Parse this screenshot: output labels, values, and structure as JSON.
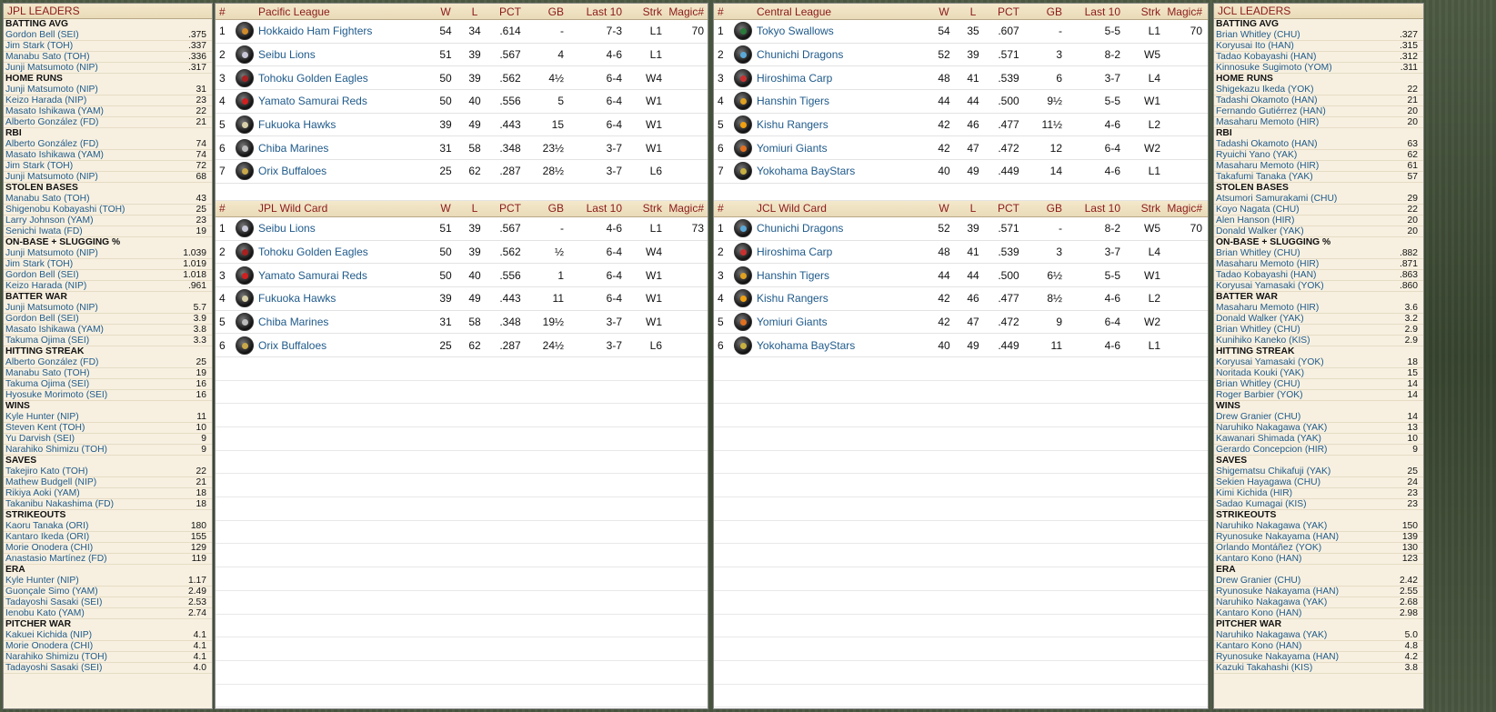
{
  "jpl_leaders": {
    "title": "JPL LEADERS",
    "categories": [
      {
        "name": "BATTING AVG",
        "rows": [
          [
            "Gordon Bell (SEI)",
            ".375"
          ],
          [
            "Jim Stark (TOH)",
            ".337"
          ],
          [
            "Manabu Sato (TOH)",
            ".336"
          ],
          [
            "Junji Matsumoto (NIP)",
            ".317"
          ]
        ]
      },
      {
        "name": "HOME RUNS",
        "rows": [
          [
            "Junji Matsumoto (NIP)",
            "31"
          ],
          [
            "Keizo Harada (NIP)",
            "23"
          ],
          [
            "Masato Ishikawa (YAM)",
            "22"
          ],
          [
            "Alberto González (FD)",
            "21"
          ]
        ]
      },
      {
        "name": "RBI",
        "rows": [
          [
            "Alberto González (FD)",
            "74"
          ],
          [
            "Masato Ishikawa (YAM)",
            "74"
          ],
          [
            "Jim Stark (TOH)",
            "72"
          ],
          [
            "Junji Matsumoto (NIP)",
            "68"
          ]
        ]
      },
      {
        "name": "STOLEN BASES",
        "rows": [
          [
            "Manabu Sato (TOH)",
            "43"
          ],
          [
            "Shigenobu Kobayashi (TOH)",
            "25"
          ],
          [
            "Larry Johnson (YAM)",
            "23"
          ],
          [
            "Senichi Iwata (FD)",
            "19"
          ]
        ]
      },
      {
        "name": "ON-BASE + SLUGGING %",
        "rows": [
          [
            "Junji Matsumoto (NIP)",
            "1.039"
          ],
          [
            "Jim Stark (TOH)",
            "1.019"
          ],
          [
            "Gordon Bell (SEI)",
            "1.018"
          ],
          [
            "Keizo Harada (NIP)",
            ".961"
          ]
        ]
      },
      {
        "name": "BATTER WAR",
        "rows": [
          [
            "Junji Matsumoto (NIP)",
            "5.7"
          ],
          [
            "Gordon Bell (SEI)",
            "3.9"
          ],
          [
            "Masato Ishikawa (YAM)",
            "3.8"
          ],
          [
            "Takuma Ojima (SEI)",
            "3.3"
          ]
        ]
      },
      {
        "name": "HITTING STREAK",
        "rows": [
          [
            "Alberto González (FD)",
            "25"
          ],
          [
            "Manabu Sato (TOH)",
            "19"
          ],
          [
            "Takuma Ojima (SEI)",
            "16"
          ],
          [
            "Hyosuke Morimoto (SEI)",
            "16"
          ]
        ]
      },
      {
        "name": "WINS",
        "rows": [
          [
            "Kyle Hunter (NIP)",
            "11"
          ],
          [
            "Steven Kent (TOH)",
            "10"
          ],
          [
            "Yu Darvish (SEI)",
            "9"
          ],
          [
            "Narahiko Shimizu (TOH)",
            "9"
          ]
        ]
      },
      {
        "name": "SAVES",
        "rows": [
          [
            "Takejiro Kato (TOH)",
            "22"
          ],
          [
            "Mathew Budgell (NIP)",
            "21"
          ],
          [
            "Rikiya Aoki (YAM)",
            "18"
          ],
          [
            "Takanibu Nakashima (FD)",
            "18"
          ]
        ]
      },
      {
        "name": "STRIKEOUTS",
        "rows": [
          [
            "Kaoru Tanaka (ORI)",
            "180"
          ],
          [
            "Kantaro Ikeda (ORI)",
            "155"
          ],
          [
            "Morie Onodera (CHI)",
            "129"
          ],
          [
            "Anastasio Martínez (FD)",
            "119"
          ]
        ]
      },
      {
        "name": "ERA",
        "rows": [
          [
            "Kyle Hunter (NIP)",
            "1.17"
          ],
          [
            "Guonçale Simo (YAM)",
            "2.49"
          ],
          [
            "Tadayoshi Sasaki (SEI)",
            "2.53"
          ],
          [
            "Ienobu Kato (YAM)",
            "2.74"
          ]
        ]
      },
      {
        "name": "PITCHER WAR",
        "rows": [
          [
            "Kakuei Kichida (NIP)",
            "4.1"
          ],
          [
            "Morie Onodera (CHI)",
            "4.1"
          ],
          [
            "Narahiko Shimizu (TOH)",
            "4.1"
          ],
          [
            "Tadayoshi Sasaki (SEI)",
            "4.0"
          ]
        ]
      }
    ]
  },
  "jcl_leaders": {
    "title": "JCL LEADERS",
    "categories": [
      {
        "name": "BATTING AVG",
        "rows": [
          [
            "Brian Whitley (CHU)",
            ".327"
          ],
          [
            "Koryusai Ito (HAN)",
            ".315"
          ],
          [
            "Tadao Kobayashi (HAN)",
            ".312"
          ],
          [
            "Kinnosuke Sugimoto (YOM)",
            ".311"
          ]
        ]
      },
      {
        "name": "HOME RUNS",
        "rows": [
          [
            "Shigekazu Ikeda (YOK)",
            "22"
          ],
          [
            "Tadashi Okamoto (HAN)",
            "21"
          ],
          [
            "Fernando Gutiérrez (HAN)",
            "20"
          ],
          [
            "Masaharu Memoto (HIR)",
            "20"
          ]
        ]
      },
      {
        "name": "RBI",
        "rows": [
          [
            "Tadashi Okamoto (HAN)",
            "63"
          ],
          [
            "Ryuichi Yano (YAK)",
            "62"
          ],
          [
            "Masaharu Memoto (HIR)",
            "61"
          ],
          [
            "Takafumi Tanaka (YAK)",
            "57"
          ]
        ]
      },
      {
        "name": "STOLEN BASES",
        "rows": [
          [
            "Atsumori Samurakami (CHU)",
            "29"
          ],
          [
            "Koyo Nagata (CHU)",
            "22"
          ],
          [
            "Alen Hanson (HIR)",
            "20"
          ],
          [
            "Donald Walker (YAK)",
            "20"
          ]
        ]
      },
      {
        "name": "ON-BASE + SLUGGING %",
        "rows": [
          [
            "Brian Whitley (CHU)",
            ".882"
          ],
          [
            "Masaharu Memoto (HIR)",
            ".871"
          ],
          [
            "Tadao Kobayashi (HAN)",
            ".863"
          ],
          [
            "Koryusai Yamasaki (YOK)",
            ".860"
          ]
        ]
      },
      {
        "name": "BATTER WAR",
        "rows": [
          [
            "Masaharu Memoto (HIR)",
            "3.6"
          ],
          [
            "Donald Walker (YAK)",
            "3.2"
          ],
          [
            "Brian Whitley (CHU)",
            "2.9"
          ],
          [
            "Kunihiko Kaneko (KIS)",
            "2.9"
          ]
        ]
      },
      {
        "name": "HITTING STREAK",
        "rows": [
          [
            "Koryusai Yamasaki (YOK)",
            "18"
          ],
          [
            "Noritada Kouki (YAK)",
            "15"
          ],
          [
            "Brian Whitley (CHU)",
            "14"
          ],
          [
            "Roger Barbier (YOK)",
            "14"
          ]
        ]
      },
      {
        "name": "WINS",
        "rows": [
          [
            "Drew Granier (CHU)",
            "14"
          ],
          [
            "Naruhiko Nakagawa (YAK)",
            "13"
          ],
          [
            "Kawanari Shimada (YAK)",
            "10"
          ],
          [
            "Gerardo Concepcion (HIR)",
            "9"
          ]
        ]
      },
      {
        "name": "SAVES",
        "rows": [
          [
            "Shigematsu Chikafuji (YAK)",
            "25"
          ],
          [
            "Sekien Hayagawa (CHU)",
            "24"
          ],
          [
            "Kimi Kichida (HIR)",
            "23"
          ],
          [
            "Sadao Kumagai (KIS)",
            "23"
          ]
        ]
      },
      {
        "name": "STRIKEOUTS",
        "rows": [
          [
            "Naruhiko Nakagawa (YAK)",
            "150"
          ],
          [
            "Ryunosuke Nakayama (HAN)",
            "139"
          ],
          [
            "Orlando Montáñez (YOK)",
            "130"
          ],
          [
            "Kantaro Kono (HAN)",
            "123"
          ]
        ]
      },
      {
        "name": "ERA",
        "rows": [
          [
            "Drew Granier (CHU)",
            "2.42"
          ],
          [
            "Ryunosuke Nakayama (HAN)",
            "2.55"
          ],
          [
            "Naruhiko Nakagawa (YAK)",
            "2.68"
          ],
          [
            "Kantaro Kono (HAN)",
            "2.98"
          ]
        ]
      },
      {
        "name": "PITCHER WAR",
        "rows": [
          [
            "Naruhiko Nakagawa (YAK)",
            "5.0"
          ],
          [
            "Kantaro Kono (HAN)",
            "4.8"
          ],
          [
            "Ryunosuke Nakayama (HAN)",
            "4.2"
          ],
          [
            "Kazuki Takahashi (KIS)",
            "3.8"
          ]
        ]
      }
    ]
  },
  "columns": {
    "num": "#",
    "w": "W",
    "l": "L",
    "pct": "PCT",
    "gb": "GB",
    "last10": "Last 10",
    "strk": "Strk",
    "magic": "Magic#"
  },
  "pacific": {
    "title": "Pacific League",
    "rows": [
      {
        "num": "1",
        "team": "Hokkaido Ham Fighters",
        "w": "54",
        "l": "34",
        "pct": ".614",
        "gb": "-",
        "last10": "7-3",
        "strk": "L1",
        "magic": "70",
        "color": "#d08a2a"
      },
      {
        "num": "2",
        "team": "Seibu Lions",
        "w": "51",
        "l": "39",
        "pct": ".567",
        "gb": "4",
        "last10": "4-6",
        "strk": "L1",
        "magic": "",
        "color": "#c8c8d8"
      },
      {
        "num": "3",
        "team": "Tohoku Golden Eagles",
        "w": "50",
        "l": "39",
        "pct": ".562",
        "gb": "4½",
        "last10": "6-4",
        "strk": "W4",
        "magic": "",
        "color": "#a82020"
      },
      {
        "num": "4",
        "team": "Yamato Samurai Reds",
        "w": "50",
        "l": "40",
        "pct": ".556",
        "gb": "5",
        "last10": "6-4",
        "strk": "W1",
        "magic": "",
        "color": "#d02020"
      },
      {
        "num": "5",
        "team": "Fukuoka Hawks",
        "w": "39",
        "l": "49",
        "pct": ".443",
        "gb": "15",
        "last10": "6-4",
        "strk": "W1",
        "magic": "",
        "color": "#d8d0a8"
      },
      {
        "num": "6",
        "team": "Chiba Marines",
        "w": "31",
        "l": "58",
        "pct": ".348",
        "gb": "23½",
        "last10": "3-7",
        "strk": "W1",
        "magic": "",
        "color": "#bbbbbb"
      },
      {
        "num": "7",
        "team": "Orix Buffaloes",
        "w": "25",
        "l": "62",
        "pct": ".287",
        "gb": "28½",
        "last10": "3-7",
        "strk": "L6",
        "magic": "",
        "color": "#c8a848"
      }
    ],
    "wild_title": "JPL  Wild Card",
    "wild": [
      {
        "num": "1",
        "team": "Seibu Lions",
        "w": "51",
        "l": "39",
        "pct": ".567",
        "gb": "-",
        "last10": "4-6",
        "strk": "L1",
        "magic": "73",
        "color": "#c8c8d8"
      },
      {
        "num": "2",
        "team": "Tohoku Golden Eagles",
        "w": "50",
        "l": "39",
        "pct": ".562",
        "gb": "½",
        "last10": "6-4",
        "strk": "W4",
        "magic": "",
        "color": "#a82020"
      },
      {
        "num": "3",
        "team": "Yamato Samurai Reds",
        "w": "50",
        "l": "40",
        "pct": ".556",
        "gb": "1",
        "last10": "6-4",
        "strk": "W1",
        "magic": "",
        "color": "#d02020"
      },
      {
        "num": "4",
        "team": "Fukuoka Hawks",
        "w": "39",
        "l": "49",
        "pct": ".443",
        "gb": "11",
        "last10": "6-4",
        "strk": "W1",
        "magic": "",
        "color": "#d8d0a8"
      },
      {
        "num": "5",
        "team": "Chiba Marines",
        "w": "31",
        "l": "58",
        "pct": ".348",
        "gb": "19½",
        "last10": "3-7",
        "strk": "W1",
        "magic": "",
        "color": "#bbbbbb"
      },
      {
        "num": "6",
        "team": "Orix Buffaloes",
        "w": "25",
        "l": "62",
        "pct": ".287",
        "gb": "24½",
        "last10": "3-7",
        "strk": "L6",
        "magic": "",
        "color": "#c8a848"
      }
    ]
  },
  "central": {
    "title": "Central League",
    "rows": [
      {
        "num": "1",
        "team": "Tokyo Swallows",
        "w": "54",
        "l": "35",
        "pct": ".607",
        "gb": "-",
        "last10": "5-5",
        "strk": "L1",
        "magic": "70",
        "color": "#2a7a3a"
      },
      {
        "num": "2",
        "team": "Chunichi Dragons",
        "w": "52",
        "l": "39",
        "pct": ".571",
        "gb": "3",
        "last10": "8-2",
        "strk": "W5",
        "magic": "",
        "color": "#5aa8d8"
      },
      {
        "num": "3",
        "team": "Hiroshima Carp",
        "w": "48",
        "l": "41",
        "pct": ".539",
        "gb": "6",
        "last10": "3-7",
        "strk": "L4",
        "magic": "",
        "color": "#c83030"
      },
      {
        "num": "4",
        "team": "Hanshin Tigers",
        "w": "44",
        "l": "44",
        "pct": ".500",
        "gb": "9½",
        "last10": "5-5",
        "strk": "W1",
        "magic": "",
        "color": "#e0a020"
      },
      {
        "num": "5",
        "team": "Kishu Rangers",
        "w": "42",
        "l": "46",
        "pct": ".477",
        "gb": "11½",
        "last10": "4-6",
        "strk": "L2",
        "magic": "",
        "color": "#f0a010"
      },
      {
        "num": "6",
        "team": "Yomiuri Giants",
        "w": "42",
        "l": "47",
        "pct": ".472",
        "gb": "12",
        "last10": "6-4",
        "strk": "W2",
        "magic": "",
        "color": "#e07020"
      },
      {
        "num": "7",
        "team": "Yokohama BayStars",
        "w": "40",
        "l": "49",
        "pct": ".449",
        "gb": "14",
        "last10": "4-6",
        "strk": "L1",
        "magic": "",
        "color": "#c8b040"
      }
    ],
    "wild_title": "JCL  Wild Card",
    "wild": [
      {
        "num": "1",
        "team": "Chunichi Dragons",
        "w": "52",
        "l": "39",
        "pct": ".571",
        "gb": "-",
        "last10": "8-2",
        "strk": "W5",
        "magic": "70",
        "color": "#5aa8d8"
      },
      {
        "num": "2",
        "team": "Hiroshima Carp",
        "w": "48",
        "l": "41",
        "pct": ".539",
        "gb": "3",
        "last10": "3-7",
        "strk": "L4",
        "magic": "",
        "color": "#c83030"
      },
      {
        "num": "3",
        "team": "Hanshin Tigers",
        "w": "44",
        "l": "44",
        "pct": ".500",
        "gb": "6½",
        "last10": "5-5",
        "strk": "W1",
        "magic": "",
        "color": "#e0a020"
      },
      {
        "num": "4",
        "team": "Kishu Rangers",
        "w": "42",
        "l": "46",
        "pct": ".477",
        "gb": "8½",
        "last10": "4-6",
        "strk": "L2",
        "magic": "",
        "color": "#f0a010"
      },
      {
        "num": "5",
        "team": "Yomiuri Giants",
        "w": "42",
        "l": "47",
        "pct": ".472",
        "gb": "9",
        "last10": "6-4",
        "strk": "W2",
        "magic": "",
        "color": "#e07020"
      },
      {
        "num": "6",
        "team": "Yokohama BayStars",
        "w": "40",
        "l": "49",
        "pct": ".449",
        "gb": "11",
        "last10": "4-6",
        "strk": "L1",
        "magic": "",
        "color": "#c8b040"
      }
    ]
  }
}
